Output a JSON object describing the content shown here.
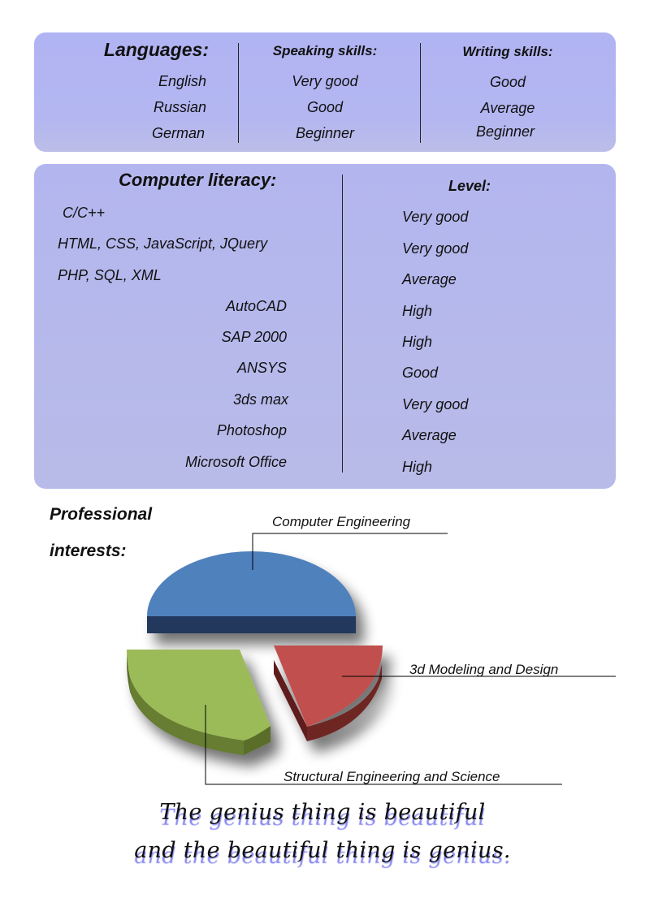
{
  "languages": {
    "header": "Languages:",
    "speaking_header": "Speaking skills:",
    "writing_header": "Writing skills:",
    "rows": [
      {
        "language": "English",
        "speaking": "Very good",
        "writing": "Good"
      },
      {
        "language": "Russian",
        "speaking": "Good",
        "writing": "Average"
      },
      {
        "language": "German",
        "speaking": "Beginner",
        "writing": "Beginner"
      }
    ]
  },
  "computer": {
    "header": "Computer literacy:",
    "level_header": "Level:",
    "rows": [
      {
        "skill": "C/C++",
        "level": "Very good"
      },
      {
        "skill": "HTML, CSS, JavaScript, JQuery",
        "level": "Very good"
      },
      {
        "skill": "PHP, SQL, XML",
        "level": "Average"
      },
      {
        "skill": "AutoCAD",
        "level": "High"
      },
      {
        "skill": "SAP 2000",
        "level": "High"
      },
      {
        "skill": "ANSYS",
        "level": "Good"
      },
      {
        "skill": "3ds max",
        "level": "Very good"
      },
      {
        "skill": "Photoshop",
        "level": "Average"
      },
      {
        "skill": "Microsoft Office",
        "level": "High"
      }
    ]
  },
  "interests": {
    "header_line1": "Professional",
    "header_line2": "interests:"
  },
  "chart_data": {
    "type": "pie",
    "style": "3d-exploded",
    "slices": [
      {
        "label": "Computer Engineering",
        "value": 50,
        "color": "#4f81bd"
      },
      {
        "label": "3d Modeling and Design",
        "value": 20,
        "color": "#c0504d"
      },
      {
        "label": "Structural Engineering and Science",
        "value": 30,
        "color": "#9bbb59"
      }
    ]
  },
  "quote": {
    "line1": "The genius thing is beautiful",
    "line2": "and the beautiful thing is genius."
  }
}
